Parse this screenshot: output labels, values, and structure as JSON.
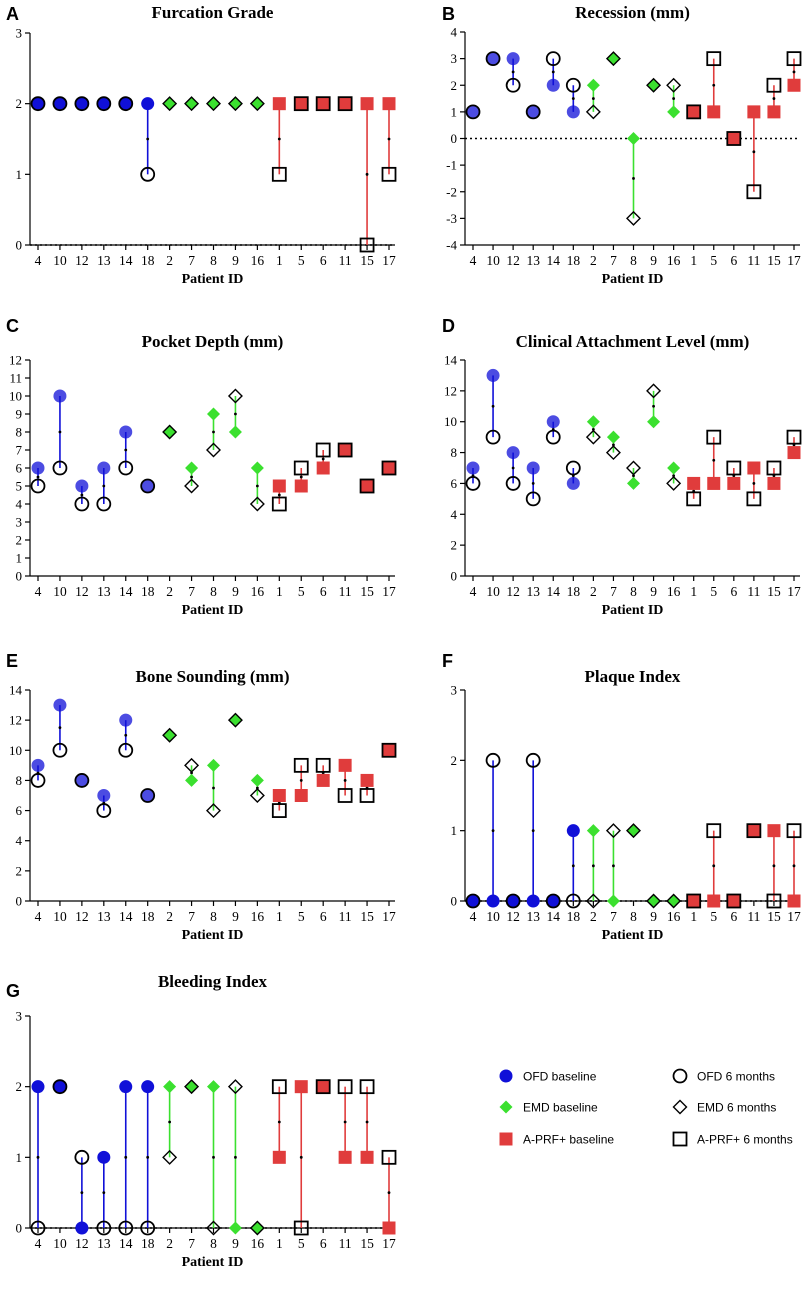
{
  "figure": {
    "legend": {
      "items": [
        {
          "label": "OFD baseline",
          "group": "OFD",
          "kind": "baseline"
        },
        {
          "label": "OFD 6 months",
          "group": "OFD",
          "kind": "followup"
        },
        {
          "label": "EMD baseline",
          "group": "EMD",
          "kind": "baseline"
        },
        {
          "label": "EMD 6 months",
          "group": "EMD",
          "kind": "followup"
        },
        {
          "label": "A-PRF+ baseline",
          "group": "APRF",
          "kind": "baseline"
        },
        {
          "label": "A-PRF+ 6 months",
          "group": "APRF",
          "kind": "followup"
        }
      ]
    }
  },
  "chart_data": [
    {
      "panel": "A",
      "type": "scatter",
      "title": "Furcation Grade",
      "xlabel": "Patient ID",
      "ylabel": "",
      "ylim": [
        0,
        3
      ],
      "yticks": [
        0,
        1,
        2,
        3
      ],
      "zero_line": true,
      "categories": [
        "4",
        "10",
        "12",
        "13",
        "14",
        "18",
        "2",
        "7",
        "8",
        "9",
        "16",
        "1",
        "5",
        "6",
        "11",
        "15",
        "17"
      ],
      "groups": [
        "OFD",
        "OFD",
        "OFD",
        "OFD",
        "OFD",
        "OFD",
        "EMD",
        "EMD",
        "EMD",
        "EMD",
        "EMD",
        "APRF",
        "APRF",
        "APRF",
        "APRF",
        "APRF",
        "APRF"
      ],
      "series": [
        {
          "name": "baseline",
          "values": [
            2,
            2,
            2,
            2,
            2,
            2,
            2,
            2,
            2,
            2,
            2,
            2,
            2,
            2,
            2,
            2,
            2
          ]
        },
        {
          "name": "6 months",
          "values": [
            2,
            2,
            2,
            2,
            2,
            1,
            2,
            2,
            2,
            2,
            2,
            1,
            2,
            2,
            2,
            0,
            1
          ]
        }
      ]
    },
    {
      "panel": "B",
      "type": "scatter",
      "title": "Recession (mm)",
      "xlabel": "Patient ID",
      "ylabel": "",
      "ylim": [
        -4,
        4
      ],
      "yticks": [
        -4,
        -3,
        -2,
        -1,
        0,
        1,
        2,
        3,
        4
      ],
      "zero_line": true,
      "categories": [
        "4",
        "10",
        "12",
        "13",
        "14",
        "18",
        "2",
        "7",
        "8",
        "9",
        "16",
        "1",
        "5",
        "6",
        "11",
        "15",
        "17"
      ],
      "groups": [
        "OFD",
        "OFD",
        "OFD",
        "OFD",
        "OFD",
        "OFD",
        "EMD",
        "EMD",
        "EMD",
        "EMD",
        "EMD",
        "APRF",
        "APRF",
        "APRF",
        "APRF",
        "APRF",
        "APRF"
      ],
      "series": [
        {
          "name": "baseline",
          "values": [
            1,
            3,
            3,
            1,
            2,
            1,
            2,
            3,
            0,
            2,
            1,
            1,
            1,
            0,
            1,
            1,
            2
          ]
        },
        {
          "name": "6 months",
          "values": [
            1,
            3,
            2,
            1,
            3,
            2,
            1,
            3,
            -3,
            2,
            2,
            1,
            3,
            0,
            -2,
            2,
            3
          ]
        }
      ]
    },
    {
      "panel": "C",
      "type": "scatter",
      "title": "Pocket Depth (mm)",
      "xlabel": "Patient ID",
      "ylabel": "",
      "ylim": [
        0,
        12
      ],
      "yticks": [
        0,
        1,
        2,
        3,
        4,
        5,
        6,
        7,
        8,
        9,
        10,
        11,
        12
      ],
      "zero_line": false,
      "categories": [
        "4",
        "10",
        "12",
        "13",
        "14",
        "18",
        "2",
        "7",
        "8",
        "9",
        "16",
        "1",
        "5",
        "6",
        "11",
        "15",
        "17"
      ],
      "groups": [
        "OFD",
        "OFD",
        "OFD",
        "OFD",
        "OFD",
        "OFD",
        "EMD",
        "EMD",
        "EMD",
        "EMD",
        "EMD",
        "APRF",
        "APRF",
        "APRF",
        "APRF",
        "APRF",
        "APRF"
      ],
      "series": [
        {
          "name": "baseline",
          "values": [
            6,
            10,
            5,
            6,
            8,
            5,
            8,
            6,
            9,
            8,
            6,
            5,
            5,
            6,
            7,
            5,
            6
          ]
        },
        {
          "name": "6 months",
          "values": [
            5,
            6,
            4,
            4,
            6,
            5,
            8,
            5,
            7,
            10,
            4,
            4,
            6,
            7,
            7,
            5,
            6
          ]
        }
      ]
    },
    {
      "panel": "D",
      "type": "scatter",
      "title": "Clinical Attachment Level (mm)",
      "xlabel": "Patient ID",
      "ylabel": "",
      "ylim": [
        0,
        14
      ],
      "yticks": [
        0,
        2,
        4,
        6,
        8,
        10,
        12,
        14
      ],
      "zero_line": false,
      "categories": [
        "4",
        "10",
        "12",
        "13",
        "14",
        "18",
        "2",
        "7",
        "8",
        "9",
        "16",
        "1",
        "5",
        "6",
        "11",
        "15",
        "17"
      ],
      "groups": [
        "OFD",
        "OFD",
        "OFD",
        "OFD",
        "OFD",
        "OFD",
        "EMD",
        "EMD",
        "EMD",
        "EMD",
        "EMD",
        "APRF",
        "APRF",
        "APRF",
        "APRF",
        "APRF",
        "APRF"
      ],
      "series": [
        {
          "name": "baseline",
          "values": [
            7,
            13,
            8,
            7,
            10,
            6,
            10,
            9,
            6,
            10,
            7,
            6,
            6,
            6,
            7,
            6,
            8
          ]
        },
        {
          "name": "6 months",
          "values": [
            6,
            9,
            6,
            5,
            9,
            7,
            9,
            8,
            7,
            12,
            6,
            5,
            9,
            7,
            5,
            7,
            9
          ]
        }
      ]
    },
    {
      "panel": "E",
      "type": "scatter",
      "title": "Bone Sounding (mm)",
      "xlabel": "Patient ID",
      "ylabel": "",
      "ylim": [
        0,
        14
      ],
      "yticks": [
        0,
        2,
        4,
        6,
        8,
        10,
        12,
        14
      ],
      "zero_line": false,
      "categories": [
        "4",
        "10",
        "12",
        "13",
        "14",
        "18",
        "2",
        "7",
        "8",
        "9",
        "16",
        "1",
        "5",
        "6",
        "11",
        "15",
        "17"
      ],
      "groups": [
        "OFD",
        "OFD",
        "OFD",
        "OFD",
        "OFD",
        "OFD",
        "EMD",
        "EMD",
        "EMD",
        "EMD",
        "EMD",
        "APRF",
        "APRF",
        "APRF",
        "APRF",
        "APRF",
        "APRF"
      ],
      "series": [
        {
          "name": "baseline",
          "values": [
            9,
            13,
            8,
            7,
            12,
            7,
            11,
            8,
            9,
            12,
            8,
            7,
            7,
            8,
            9,
            8,
            10
          ]
        },
        {
          "name": "6 months",
          "values": [
            8,
            10,
            8,
            6,
            10,
            7,
            11,
            9,
            6,
            12,
            7,
            6,
            9,
            9,
            7,
            7,
            10
          ]
        }
      ]
    },
    {
      "panel": "F",
      "type": "scatter",
      "title": "Plaque Index",
      "xlabel": "Patient ID",
      "ylabel": "",
      "ylim": [
        0,
        3
      ],
      "yticks": [
        0,
        1,
        2,
        3
      ],
      "zero_line": true,
      "categories": [
        "4",
        "10",
        "12",
        "13",
        "14",
        "18",
        "2",
        "7",
        "8",
        "9",
        "16",
        "1",
        "5",
        "6",
        "11",
        "15",
        "17"
      ],
      "groups": [
        "OFD",
        "OFD",
        "OFD",
        "OFD",
        "OFD",
        "OFD",
        "EMD",
        "EMD",
        "EMD",
        "EMD",
        "EMD",
        "APRF",
        "APRF",
        "APRF",
        "APRF",
        "APRF",
        "APRF"
      ],
      "series": [
        {
          "name": "baseline",
          "values": [
            0,
            0,
            0,
            0,
            0,
            1,
            1,
            0,
            1,
            0,
            0,
            0,
            0,
            0,
            1,
            1,
            0
          ]
        },
        {
          "name": "6 months",
          "values": [
            0,
            2,
            0,
            2,
            0,
            0,
            0,
            1,
            1,
            0,
            0,
            0,
            1,
            0,
            1,
            0,
            1
          ]
        }
      ]
    },
    {
      "panel": "G",
      "type": "scatter",
      "title": "Bleeding Index",
      "xlabel": "Patient ID",
      "ylabel": "",
      "ylim": [
        0,
        3
      ],
      "yticks": [
        0,
        1,
        2,
        3
      ],
      "zero_line": true,
      "categories": [
        "4",
        "10",
        "12",
        "13",
        "14",
        "18",
        "2",
        "7",
        "8",
        "9",
        "16",
        "1",
        "5",
        "6",
        "11",
        "15",
        "17"
      ],
      "groups": [
        "OFD",
        "OFD",
        "OFD",
        "OFD",
        "OFD",
        "OFD",
        "EMD",
        "EMD",
        "EMD",
        "EMD",
        "EMD",
        "APRF",
        "APRF",
        "APRF",
        "APRF",
        "APRF",
        "APRF"
      ],
      "series": [
        {
          "name": "baseline",
          "values": [
            2,
            2,
            0,
            1,
            2,
            2,
            2,
            2,
            2,
            0,
            0,
            1,
            2,
            2,
            1,
            1,
            0
          ]
        },
        {
          "name": "6 months",
          "values": [
            0,
            2,
            1,
            0,
            0,
            0,
            1,
            2,
            0,
            2,
            0,
            2,
            0,
            2,
            2,
            2,
            1
          ]
        }
      ]
    }
  ]
}
